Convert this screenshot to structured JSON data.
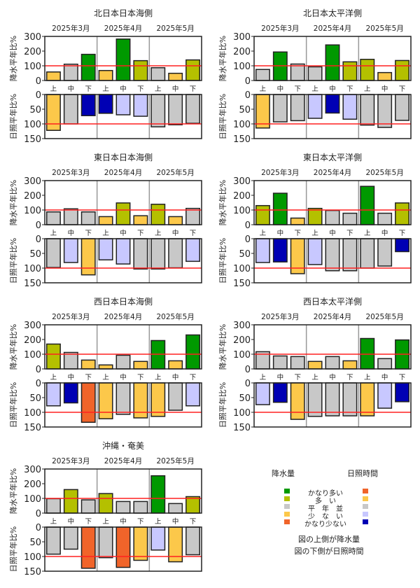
{
  "chart_data": [
    {
      "type": "bar",
      "title": "北日本日本海側",
      "months": [
        "2025年3月",
        "2025年4月",
        "2025年5月"
      ],
      "categories": [
        "上",
        "中",
        "下",
        "上",
        "中",
        "下",
        "上",
        "中",
        "下"
      ],
      "precip": {
        "ylabel": "降水平年比%",
        "ylim": [
          0,
          300
        ],
        "ticks": [
          "0",
          "100",
          "200",
          "300"
        ],
        "reference": 100,
        "values": [
          58,
          111,
          178,
          68,
          282,
          135,
          87,
          49,
          140
        ],
        "classes": [
          "少ない",
          "平年並",
          "かなり多い",
          "少ない",
          "かなり多い",
          "多い",
          "平年並",
          "少ない",
          "多い"
        ]
      },
      "sunshine": {
        "ylabel": "日照平年比%",
        "ylim": [
          0,
          150
        ],
        "inverted": true,
        "ticks": [
          "0",
          "50",
          "100",
          "150"
        ],
        "reference": 100,
        "values": [
          122,
          100,
          72,
          64,
          69,
          74,
          110,
          103,
          98
        ],
        "classes": [
          "多い",
          "平年並",
          "かなり少ない",
          "かなり少ない",
          "少ない",
          "少ない",
          "平年並",
          "平年並",
          "平年並"
        ]
      }
    },
    {
      "type": "bar",
      "title": "北日本太平洋側",
      "months": [
        "2025年3月",
        "2025年4月",
        "2025年5月"
      ],
      "categories": [
        "上",
        "中",
        "下",
        "上",
        "中",
        "下",
        "上",
        "中",
        "下"
      ],
      "precip": {
        "ylabel": "降水平年比%",
        "ylim": [
          0,
          300
        ],
        "ticks": [
          "0",
          "100",
          "200",
          "300"
        ],
        "reference": 100,
        "values": [
          75,
          194,
          112,
          93,
          242,
          127,
          144,
          54,
          136
        ],
        "classes": [
          "平年並",
          "かなり多い",
          "平年並",
          "平年並",
          "かなり多い",
          "多い",
          "多い",
          "少ない",
          "多い"
        ]
      },
      "sunshine": {
        "ylabel": "日照平年比%",
        "ylim": [
          0,
          150
        ],
        "inverted": true,
        "ticks": [
          "0",
          "50",
          "100",
          "150"
        ],
        "reference": 100,
        "values": [
          114,
          93,
          89,
          81,
          63,
          84,
          104,
          112,
          88
        ],
        "classes": [
          "多い",
          "平年並",
          "平年並",
          "少ない",
          "かなり少ない",
          "少ない",
          "平年並",
          "平年並",
          "平年並"
        ]
      }
    },
    {
      "type": "bar",
      "title": "東日本日本海側",
      "months": [
        "2025年3月",
        "2025年4月",
        "2025年5月"
      ],
      "categories": [
        "上",
        "中",
        "下",
        "上",
        "中",
        "下",
        "上",
        "中",
        "下"
      ],
      "precip": {
        "ylabel": "降水平年比%",
        "ylim": [
          0,
          300
        ],
        "ticks": [
          "0",
          "100",
          "200",
          "300"
        ],
        "reference": 100,
        "values": [
          87,
          108,
          87,
          55,
          148,
          61,
          139,
          55,
          111
        ],
        "classes": [
          "平年並",
          "平年並",
          "平年並",
          "少ない",
          "多い",
          "少ない",
          "多い",
          "少ない",
          "平年並"
        ]
      },
      "sunshine": {
        "ylabel": "日照平年比%",
        "ylim": [
          0,
          150
        ],
        "inverted": true,
        "ticks": [
          "0",
          "50",
          "100",
          "150"
        ],
        "reference": 100,
        "values": [
          98,
          81,
          123,
          72,
          86,
          103,
          103,
          99,
          77
        ],
        "classes": [
          "平年並",
          "少ない",
          "多い",
          "少ない",
          "少ない",
          "平年並",
          "平年並",
          "平年並",
          "少ない"
        ]
      }
    },
    {
      "type": "bar",
      "title": "東日本太平洋側",
      "months": [
        "2025年3月",
        "2025年4月",
        "2025年5月"
      ],
      "categories": [
        "上",
        "中",
        "下",
        "上",
        "中",
        "下",
        "上",
        "中",
        "下"
      ],
      "precip": {
        "ylabel": "降水平年比%",
        "ylim": [
          0,
          300
        ],
        "ticks": [
          "0",
          "100",
          "200",
          "300"
        ],
        "reference": 100,
        "values": [
          130,
          214,
          45,
          111,
          97,
          78,
          261,
          78,
          148
        ],
        "classes": [
          "多い",
          "かなり多い",
          "少ない",
          "多い",
          "平年並",
          "平年並",
          "かなり多い",
          "平年並",
          "多い"
        ]
      },
      "sunshine": {
        "ylabel": "日照平年比%",
        "ylim": [
          0,
          150
        ],
        "inverted": true,
        "ticks": [
          "0",
          "50",
          "100",
          "150"
        ],
        "reference": 100,
        "values": [
          81,
          79,
          119,
          88,
          109,
          109,
          100,
          93,
          44
        ],
        "classes": [
          "少ない",
          "かなり少ない",
          "多い",
          "少ない",
          "平年並",
          "平年並",
          "平年並",
          "平年並",
          "かなり少ない"
        ]
      }
    },
    {
      "type": "bar",
      "title": "西日本日本海側",
      "months": [
        "2025年3月",
        "2025年4月",
        "2025年5月"
      ],
      "categories": [
        "上",
        "中",
        "下",
        "上",
        "中",
        "下",
        "上",
        "中",
        "下"
      ],
      "precip": {
        "ylabel": "降水平年比%",
        "ylim": [
          0,
          300
        ],
        "ticks": [
          "0",
          "100",
          "200",
          "300"
        ],
        "reference": 100,
        "values": [
          169,
          112,
          60,
          27,
          93,
          51,
          193,
          55,
          231
        ],
        "classes": [
          "多い",
          "平年並",
          "少ない",
          "少ない",
          "平年並",
          "少ない",
          "かなり多い",
          "少ない",
          "かなり多い"
        ]
      },
      "sunshine": {
        "ylabel": "日照平年比%",
        "ylim": [
          0,
          150
        ],
        "inverted": true,
        "ticks": [
          "0",
          "50",
          "100",
          "150"
        ],
        "reference": 100,
        "values": [
          78,
          68,
          134,
          122,
          107,
          119,
          114,
          93,
          78
        ],
        "classes": [
          "少ない",
          "かなり少ない",
          "かなり多い",
          "多い",
          "平年並",
          "多い",
          "多い",
          "平年並",
          "少ない"
        ]
      }
    },
    {
      "type": "bar",
      "title": "西日本太平洋側",
      "months": [
        "2025年3月",
        "2025年4月",
        "2025年5月"
      ],
      "categories": [
        "上",
        "中",
        "下",
        "上",
        "中",
        "下",
        "上",
        "中",
        "下"
      ],
      "precip": {
        "ylabel": "降水平年比%",
        "ylim": [
          0,
          300
        ],
        "ticks": [
          "0",
          "100",
          "200",
          "300"
        ],
        "reference": 100,
        "values": [
          117,
          88,
          84,
          51,
          84,
          55,
          207,
          70,
          197
        ],
        "classes": [
          "平年並",
          "平年並",
          "平年並",
          "少ない",
          "平年並",
          "少ない",
          "かなり多い",
          "平年並",
          "かなり多い"
        ]
      },
      "sunshine": {
        "ylabel": "日照平年比%",
        "ylim": [
          0,
          150
        ],
        "inverted": true,
        "ticks": [
          "0",
          "50",
          "100",
          "150"
        ],
        "reference": 100,
        "values": [
          74,
          66,
          124,
          114,
          112,
          112,
          112,
          86,
          64
        ],
        "classes": [
          "少ない",
          "かなり少ない",
          "多い",
          "平年並",
          "平年並",
          "平年並",
          "多い",
          "少ない",
          "かなり少ない"
        ]
      }
    },
    {
      "type": "bar",
      "title": "沖縄・奄美",
      "months": [
        "2025年3月",
        "2025年4月",
        "2025年5月"
      ],
      "categories": [
        "上",
        "中",
        "下",
        "上",
        "中",
        "下",
        "上",
        "中",
        "下"
      ],
      "precip": {
        "ylabel": "降水平年比%",
        "ylim": [
          0,
          300
        ],
        "ticks": [
          "0",
          "100",
          "200",
          "300"
        ],
        "reference": 100,
        "values": [
          98,
          160,
          90,
          133,
          79,
          79,
          254,
          65,
          112
        ],
        "classes": [
          "平年並",
          "多い",
          "平年並",
          "多い",
          "平年並",
          "平年並",
          "かなり多い",
          "平年並",
          "多い"
        ]
      },
      "sunshine": {
        "ylabel": "日照平年比%",
        "ylim": [
          0,
          150
        ],
        "inverted": true,
        "ticks": [
          "0",
          "50",
          "100",
          "150"
        ],
        "reference": 100,
        "values": [
          92,
          75,
          140,
          104,
          137,
          113,
          78,
          118,
          94
        ],
        "classes": [
          "平年並",
          "平年並",
          "かなり多い",
          "平年並",
          "かなり多い",
          "多い",
          "少ない",
          "多い",
          "平年並"
        ]
      }
    }
  ],
  "legend": {
    "precip_title": "降水量",
    "sunshine_title": "日照時間",
    "categories": [
      "かなり多い",
      "多　い",
      "平　年　並",
      "少　な　い",
      "かなり少ない"
    ],
    "precip_colors": {
      "かなり多い": "#009900",
      "多い": "#b4c000",
      "平年並": "#c8c8c8",
      "少ない": "#fcc84a",
      "かなり少ない": "#f0642a"
    },
    "sunshine_colors": {
      "かなり多い": "#f0642a",
      "多い": "#fcc84a",
      "平年並": "#c8c8c8",
      "少ない": "#c8c8ff",
      "かなり少ない": "#0000b4"
    },
    "note_upper": "図の上側が降水量",
    "note_lower": "図の下側が日照時間"
  },
  "reference_line_color": "#ff2020",
  "divider_color": "#999999"
}
